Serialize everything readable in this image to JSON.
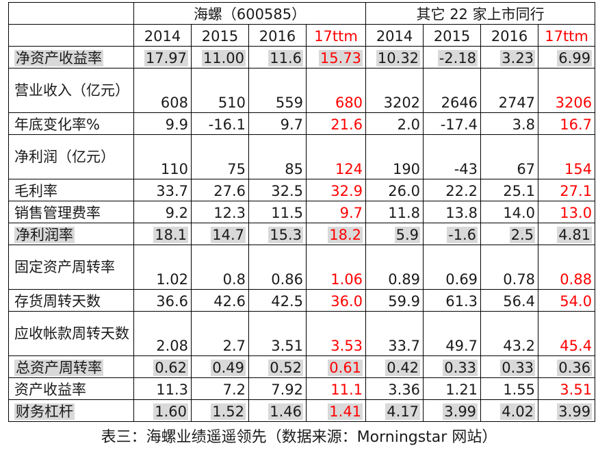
{
  "header": {
    "group1": "海螺（600585）",
    "group2": "其它 22 家上市同行",
    "years": [
      "2014",
      "2015",
      "2016",
      "17ttm",
      "2014",
      "2015",
      "2016",
      "17ttm"
    ]
  },
  "rows": [
    {
      "label": "净资产收益率",
      "values": [
        "17.97",
        "11.00",
        "11.6",
        "15.73",
        "10.32",
        "-2.18",
        "3.23",
        "6.99"
      ],
      "shaded": true
    },
    {
      "label": "营业收入（亿元）",
      "values": [
        "608",
        "510",
        "559",
        "680",
        "3202",
        "2646",
        "2747",
        "3206"
      ],
      "shaded": false
    },
    {
      "label": "年底变化率%",
      "values": [
        "9.9",
        "-16.1",
        "9.7",
        "21.6",
        "2.0",
        "-17.4",
        "3.8",
        "16.7"
      ],
      "shaded": false
    },
    {
      "label": "净利润（亿元）",
      "values": [
        "110",
        "75",
        "85",
        "124",
        "190",
        "-43",
        "67",
        "154"
      ],
      "shaded": false
    },
    {
      "label": "毛利率",
      "values": [
        "33.7",
        "27.6",
        "32.5",
        "32.9",
        "26.0",
        "22.2",
        "25.1",
        "27.1"
      ],
      "shaded": false
    },
    {
      "label": "销售管理费率",
      "values": [
        "9.2",
        "12.3",
        "11.5",
        "9.7",
        "11.8",
        "13.8",
        "14.0",
        "13.0"
      ],
      "shaded": false
    },
    {
      "label": "净利润率",
      "values": [
        "18.1",
        "14.7",
        "15.3",
        "18.2",
        "5.9",
        "-1.6",
        "2.5",
        "4.81"
      ],
      "shaded": true
    },
    {
      "label": "固定资产周转率",
      "values": [
        "1.02",
        "0.8",
        "0.86",
        "1.06",
        "0.89",
        "0.69",
        "0.78",
        "0.88"
      ],
      "shaded": false
    },
    {
      "label": "存货周转天数",
      "values": [
        "36.6",
        "42.6",
        "42.5",
        "36.0",
        "59.9",
        "61.3",
        "56.4",
        "54.0"
      ],
      "shaded": false
    },
    {
      "label": "应收帐款周转天数",
      "values": [
        "2.08",
        "2.7",
        "3.51",
        "3.53",
        "33.7",
        "49.7",
        "43.2",
        "45.4"
      ],
      "shaded": false
    },
    {
      "label": "总资产周转率",
      "values": [
        "0.62",
        "0.49",
        "0.52",
        "0.61",
        "0.42",
        "0.33",
        "0.33",
        "0.36"
      ],
      "shaded": true
    },
    {
      "label": "资产收益率",
      "values": [
        "11.3",
        "7.2",
        "7.92",
        "11.1",
        "3.36",
        "1.21",
        "1.55",
        "3.51"
      ],
      "shaded": false
    },
    {
      "label": "财务杠杆",
      "values": [
        "1.60",
        "1.52",
        "1.46",
        "1.41",
        "4.17",
        "3.99",
        "4.02",
        "3.99"
      ],
      "shaded": true
    }
  ],
  "caption": "表三：海螺业绩遥遥领先（数据来源：Morningstar 网站）",
  "colors": {
    "highlight": "#d9d9d9",
    "ttm_red": "#ff0000",
    "border": "#000000"
  }
}
